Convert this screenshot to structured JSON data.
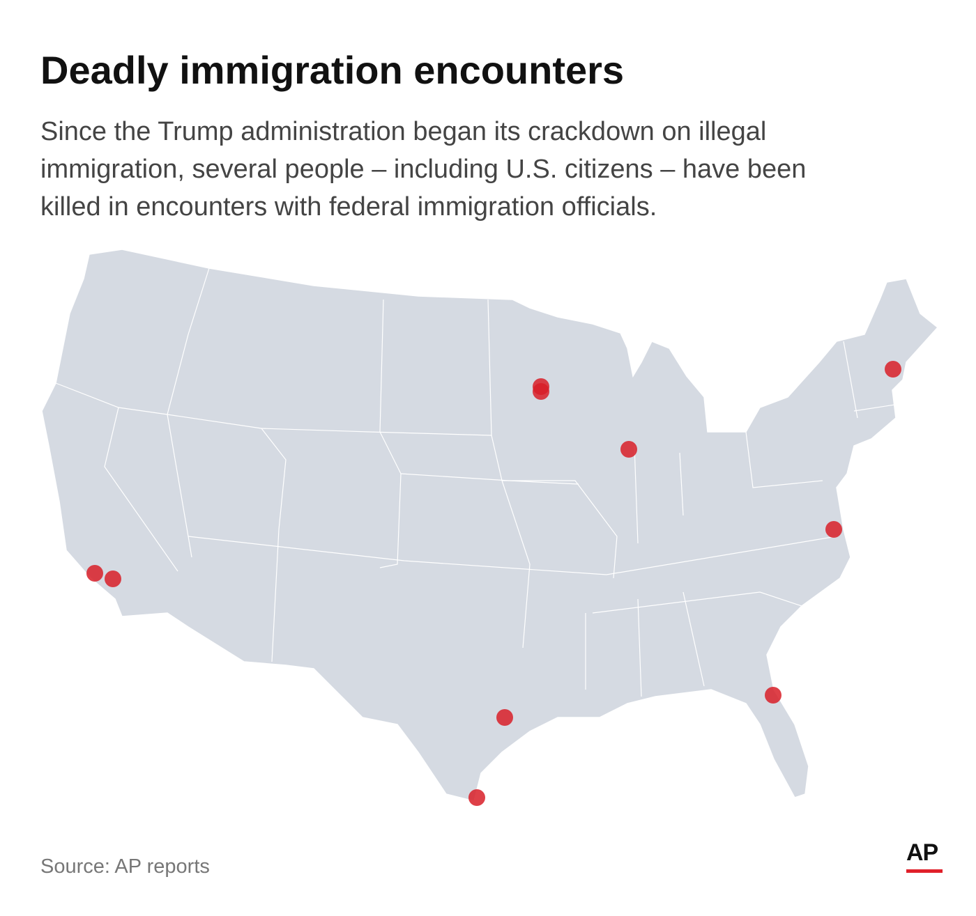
{
  "header": {
    "title": "Deadly immigration encounters",
    "subtitle": [
      "Since the Trump administration began its crackdown on illegal",
      "immigration, several people – including U.S. citizens – have been",
      "killed in encounters with federal immigration officials."
    ]
  },
  "footer": {
    "source": "Source: AP reports",
    "logo": "AP"
  }
}
